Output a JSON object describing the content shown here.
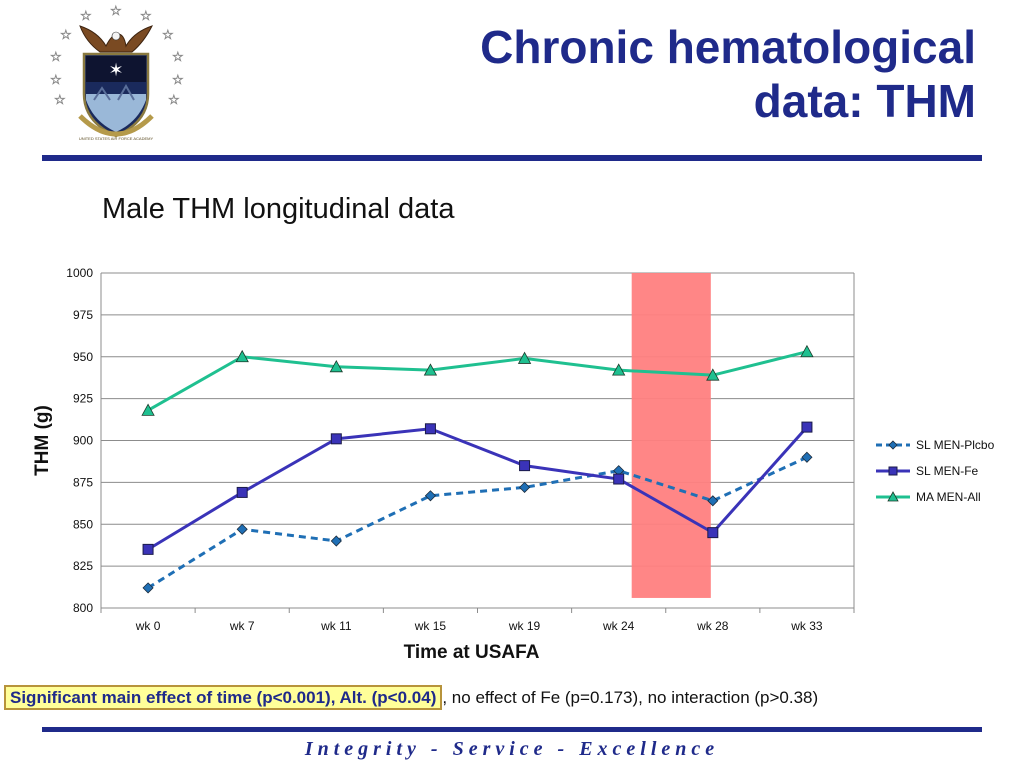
{
  "slide": {
    "title_line1": "Chronic hematological",
    "title_line2": "data: THM",
    "subtitle": "Male THM longitudinal data",
    "stat_highlight": "Significant main effect of time (p<0.001), Alt. (p<0.04)",
    "stat_rest": ", no effect of Fe (p=0.173), no interaction (p>0.38)",
    "footer": "Integrity - Service - Excellence",
    "logo_text": "UNITED STATES AIR FORCE ACADEMY"
  },
  "colors": {
    "brand_navy": "#1f2a8a",
    "highlight_band": "#ff8080",
    "plcbo": "#1f6fb5",
    "fe": "#3a33b8",
    "all": "#1fc090"
  },
  "chart_data": {
    "type": "line",
    "xlabel": "Time at USAFA",
    "ylabel": "THM (g)",
    "ylim": [
      800,
      1000
    ],
    "yticks": [
      800,
      825,
      850,
      875,
      900,
      925,
      950,
      975,
      1000
    ],
    "categories": [
      "wk 0",
      "wk 7",
      "wk 11",
      "wk 15",
      "wk 19",
      "wk 24",
      "wk 28",
      "wk 33"
    ],
    "grid": true,
    "legend_position": "right",
    "highlight_region": {
      "from_category": "wk 24",
      "to_category": "wk 28",
      "from_value": 806,
      "to_value": 1000
    },
    "series": [
      {
        "name": "SL MEN-Plcbo",
        "style": "dashed",
        "marker": "diamond",
        "values": [
          812,
          847,
          840,
          867,
          872,
          882,
          864,
          890
        ]
      },
      {
        "name": "SL MEN-Fe",
        "style": "solid",
        "marker": "square",
        "values": [
          835,
          869,
          901,
          907,
          885,
          877,
          845,
          908
        ]
      },
      {
        "name": "MA MEN-All",
        "style": "solid",
        "marker": "triangle",
        "values": [
          918,
          950,
          944,
          942,
          949,
          942,
          939,
          953
        ]
      }
    ]
  }
}
